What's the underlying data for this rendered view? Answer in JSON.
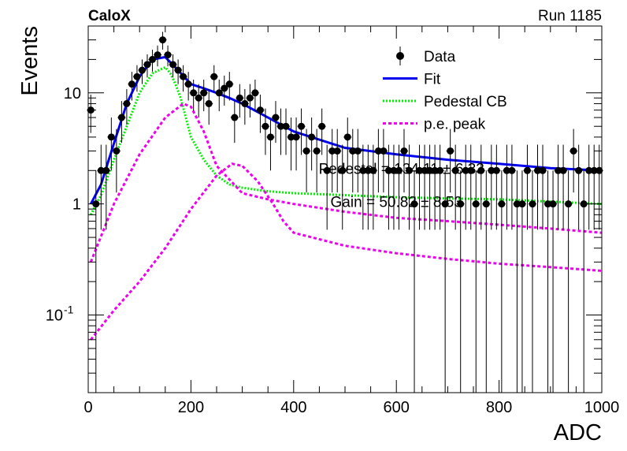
{
  "header": {
    "experiment": "CaloX",
    "run": "Run 1185"
  },
  "chart_data": {
    "type": "scatter",
    "title": "",
    "xlabel": "ADC",
    "ylabel": "Events",
    "xlim": [
      0,
      1000
    ],
    "ylim": [
      0.02,
      40
    ],
    "y_scale": "log",
    "grid": false,
    "legend_position": "top-right",
    "x_ticks": [
      0,
      200,
      400,
      600,
      800,
      1000
    ],
    "y_ticks": [
      {
        "value": 0.1,
        "base": "10",
        "exp": "-1"
      },
      {
        "value": 1,
        "label": "1"
      },
      {
        "value": 10,
        "label": "10"
      }
    ],
    "legend": [
      {
        "label": "Data",
        "style": "marker",
        "color": "#000000"
      },
      {
        "label": "Fit",
        "style": "solid",
        "color": "#0000ee"
      },
      {
        "label": "Pedestal CB",
        "style": "dotted",
        "color": "#00ee00"
      },
      {
        "label": "p.e. peak",
        "style": "dashed",
        "color": "#ee00ee"
      }
    ],
    "annotations": [
      {
        "text": "Pedestal = 134.11 ± 6.33",
        "x": 610,
        "y": 2.1
      },
      {
        "text": "Gain = 50.82 ± 8.53",
        "x": 600,
        "y": 1.05
      }
    ],
    "series": [
      {
        "name": "Data",
        "kind": "points",
        "color": "#000000",
        "x": [
          5,
          15,
          25,
          35,
          45,
          55,
          65,
          75,
          85,
          95,
          105,
          115,
          125,
          135,
          145,
          155,
          165,
          175,
          185,
          195,
          205,
          215,
          225,
          235,
          245,
          255,
          265,
          275,
          285,
          295,
          305,
          315,
          325,
          335,
          345,
          355,
          365,
          375,
          385,
          395,
          405,
          415,
          425,
          435,
          445,
          455,
          465,
          475,
          485,
          495,
          505,
          515,
          525,
          535,
          545,
          555,
          565,
          575,
          585,
          595,
          605,
          615,
          625,
          635,
          645,
          655,
          665,
          675,
          685,
          695,
          705,
          715,
          725,
          735,
          745,
          755,
          765,
          775,
          785,
          795,
          805,
          815,
          825,
          835,
          845,
          855,
          865,
          875,
          885,
          895,
          905,
          915,
          925,
          935,
          945,
          955,
          965,
          975,
          985,
          995
        ],
        "y": [
          7,
          1,
          2,
          2,
          4,
          3,
          6,
          8,
          12,
          14,
          16,
          18,
          20,
          22,
          30,
          22,
          18,
          16,
          14,
          12,
          10,
          9,
          10,
          8,
          14,
          10,
          11,
          12,
          6,
          9,
          8,
          9,
          10,
          7,
          5,
          4,
          6,
          5,
          5,
          4,
          4,
          5,
          3,
          4,
          3,
          5,
          2,
          3,
          3,
          2,
          4,
          3,
          3,
          2,
          2,
          2,
          3,
          3,
          2,
          2,
          2,
          3,
          2,
          1,
          2,
          2,
          2,
          2,
          2,
          1,
          3,
          2,
          1,
          2,
          2,
          1,
          2,
          1,
          2,
          2,
          1,
          2,
          2,
          1,
          1,
          2,
          1,
          2,
          2,
          1,
          1,
          2,
          2,
          1,
          3,
          2,
          1,
          2,
          2,
          2
        ]
      },
      {
        "name": "Fit",
        "kind": "line",
        "color": "#0000ee",
        "x": [
          5,
          25,
          50,
          75,
          100,
          125,
          150,
          175,
          200,
          225,
          250,
          275,
          300,
          350,
          400,
          500,
          600,
          700,
          800,
          900,
          1000
        ],
        "y": [
          1.0,
          1.5,
          3.5,
          8,
          14,
          20,
          21,
          16,
          12,
          11,
          10,
          9,
          8,
          6,
          4.5,
          3.2,
          2.8,
          2.5,
          2.3,
          2.1,
          2.0
        ]
      },
      {
        "name": "Pedestal CB",
        "kind": "line",
        "color": "#00ee00",
        "x": [
          5,
          25,
          50,
          75,
          100,
          125,
          150,
          160,
          170,
          180,
          200,
          225,
          250,
          275,
          300,
          350,
          400,
          500,
          600,
          700,
          800,
          900,
          1000
        ],
        "y": [
          0.8,
          1.2,
          2.5,
          5,
          10,
          15,
          17,
          15,
          12,
          9,
          4,
          2.5,
          1.8,
          1.5,
          1.4,
          1.3,
          1.25,
          1.2,
          1.15,
          1.12,
          1.1,
          1.05,
          1.0
        ]
      },
      {
        "name": "p.e. peak",
        "kind": "line",
        "color": "#ee00ee",
        "x": [
          5,
          50,
          100,
          150,
          185,
          200,
          225,
          250,
          300,
          350,
          400,
          500,
          600,
          700,
          800,
          900,
          1000
        ],
        "y": [
          0.3,
          1.0,
          2.8,
          6,
          8,
          7.5,
          4.5,
          2.2,
          1.25,
          1.1,
          1.0,
          0.85,
          0.75,
          0.7,
          0.65,
          0.6,
          0.55
        ]
      },
      {
        "name": "",
        "kind": "line",
        "color": "#ee00ee",
        "x": [
          5,
          50,
          100,
          150,
          200,
          250,
          280,
          300,
          330,
          360,
          380,
          400,
          500,
          600,
          700,
          800,
          900,
          1000
        ],
        "y": [
          0.06,
          0.11,
          0.2,
          0.4,
          0.9,
          1.8,
          2.3,
          2.2,
          1.6,
          1.0,
          0.7,
          0.55,
          0.42,
          0.36,
          0.32,
          0.29,
          0.27,
          0.25
        ]
      }
    ]
  }
}
